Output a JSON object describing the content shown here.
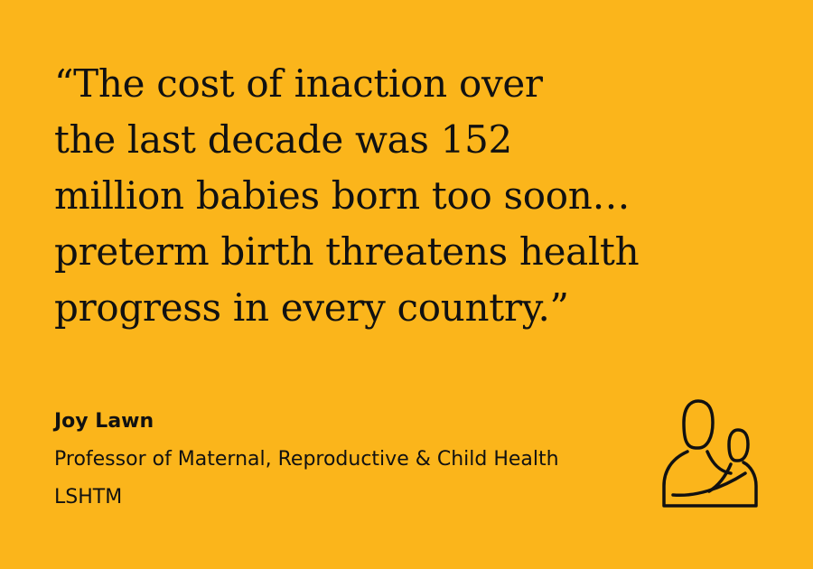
{
  "quote": {
    "lines": [
      "“The cost of inaction over",
      "the last decade was 152",
      "million babies born too soon…",
      "preterm birth threatens health",
      "progress in every country.”"
    ]
  },
  "author": {
    "name": "Joy Lawn",
    "role": "Professor of Maternal, Reproductive & Child Health",
    "organization": "LSHTM"
  }
}
